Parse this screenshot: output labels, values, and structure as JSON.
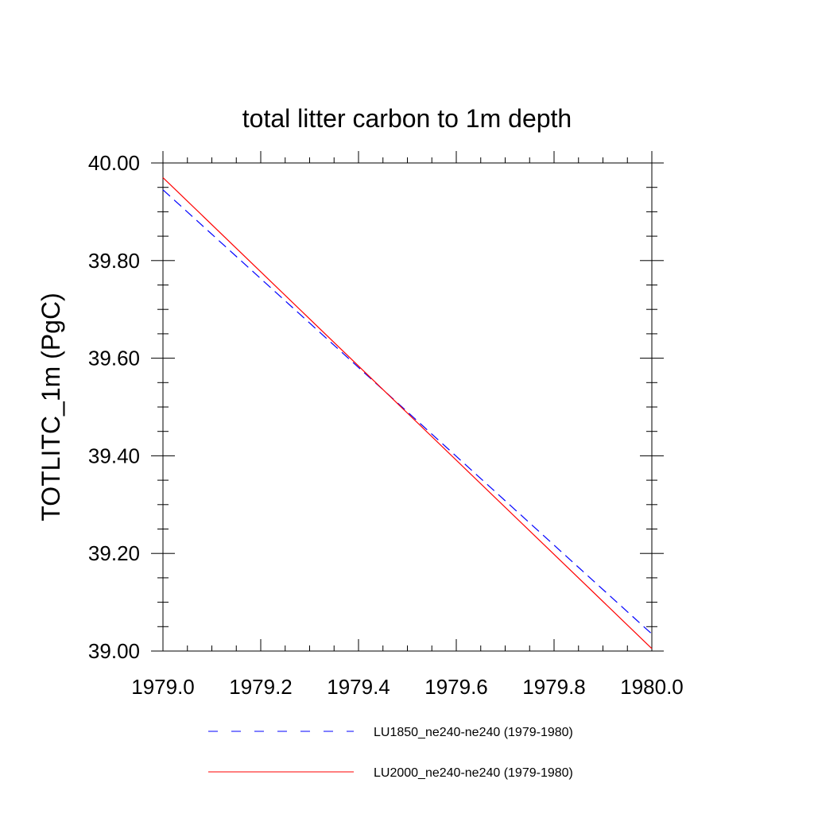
{
  "chart_data": {
    "type": "line",
    "title": "total litter carbon to 1m depth",
    "xlabel": "",
    "ylabel": "TOTLITC_1m  (PgC)",
    "xlim": [
      1979.0,
      1980.0
    ],
    "ylim": [
      39.0,
      40.0
    ],
    "x_ticks": [
      1979.0,
      1979.2,
      1979.4,
      1979.6,
      1979.8,
      1980.0
    ],
    "x_tick_labels": [
      "1979.0",
      "1979.2",
      "1979.4",
      "1979.6",
      "1979.8",
      "1980.0"
    ],
    "y_ticks": [
      39.0,
      39.2,
      39.4,
      39.6,
      39.8,
      40.0
    ],
    "y_tick_labels": [
      "39.00",
      "39.20",
      "39.40",
      "39.60",
      "39.80",
      "40.00"
    ],
    "grid": false,
    "legend_placement": "bottom",
    "series": [
      {
        "name": "LU1850_ne240-ne240 (1979-1980)",
        "color": "#0000ff",
        "dash": "dashed",
        "x": [
          1979.0,
          1980.0
        ],
        "values": [
          39.945,
          39.035
        ]
      },
      {
        "name": "LU2000_ne240-ne240 (1979-1980)",
        "color": "#ff0000",
        "dash": "solid",
        "x": [
          1979.0,
          1980.0
        ],
        "values": [
          39.97,
          39.005
        ]
      }
    ]
  }
}
